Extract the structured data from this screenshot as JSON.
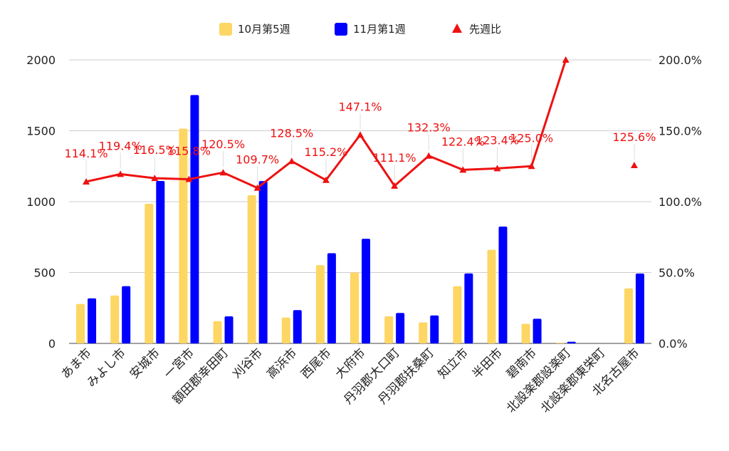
{
  "chart_data": {
    "type": "bar",
    "categories": [
      "あま市",
      "みよし市",
      "安城市",
      "一宮市",
      "額田郡幸田町",
      "刈谷市",
      "高浜市",
      "西尾市",
      "大府市",
      "丹羽郡大口町",
      "丹羽郡扶桑町",
      "知立市",
      "半田市",
      "碧南市",
      "北設楽郡設楽町",
      "北設楽郡東栄町",
      "北名古屋市"
    ],
    "series": [
      {
        "name": "10月第5週",
        "kind": "bar",
        "axis": "left",
        "color": "#fdd663",
        "values": [
          278,
          338,
          985,
          1515,
          157,
          1045,
          182,
          552,
          500,
          191,
          148,
          404,
          660,
          138,
          5,
          0,
          388
        ]
      },
      {
        "name": "11月第1週",
        "kind": "bar",
        "axis": "left",
        "color": "#0000ff",
        "values": [
          318,
          404,
          1146,
          1752,
          191,
          1145,
          235,
          636,
          738,
          215,
          197,
          494,
          824,
          174,
          12,
          0,
          493
        ]
      },
      {
        "name": "先週比",
        "kind": "line",
        "axis": "right",
        "color": "#ee1111",
        "values": [
          114.1,
          119.4,
          116.5,
          115.8,
          120.5,
          109.7,
          128.5,
          115.2,
          147.1,
          111.1,
          132.3,
          122.4,
          123.4,
          125.0,
          200.0,
          null,
          125.6
        ],
        "labels": [
          "114.1%",
          "119.4%",
          "116.5%",
          "115.8%",
          "120.5%",
          "109.7%",
          "128.5%",
          "115.2%",
          "147.1%",
          "111.1%",
          "132.3%",
          "122.4%",
          "123.4%",
          "125.0%",
          "",
          "",
          "125.6%"
        ]
      }
    ],
    "left_axis": {
      "ylim": [
        0,
        2000
      ],
      "ticks": [
        "0",
        "500",
        "1000",
        "1500",
        "2000"
      ]
    },
    "right_axis": {
      "ylim": [
        0,
        200
      ],
      "ticks": [
        "0.0%",
        "50.0%",
        "100.0%",
        "150.0%",
        "200.0%"
      ]
    },
    "legend": [
      "10月第5週",
      "11月第1週",
      "先週比"
    ],
    "legend_position": "top-center",
    "grid": true
  }
}
